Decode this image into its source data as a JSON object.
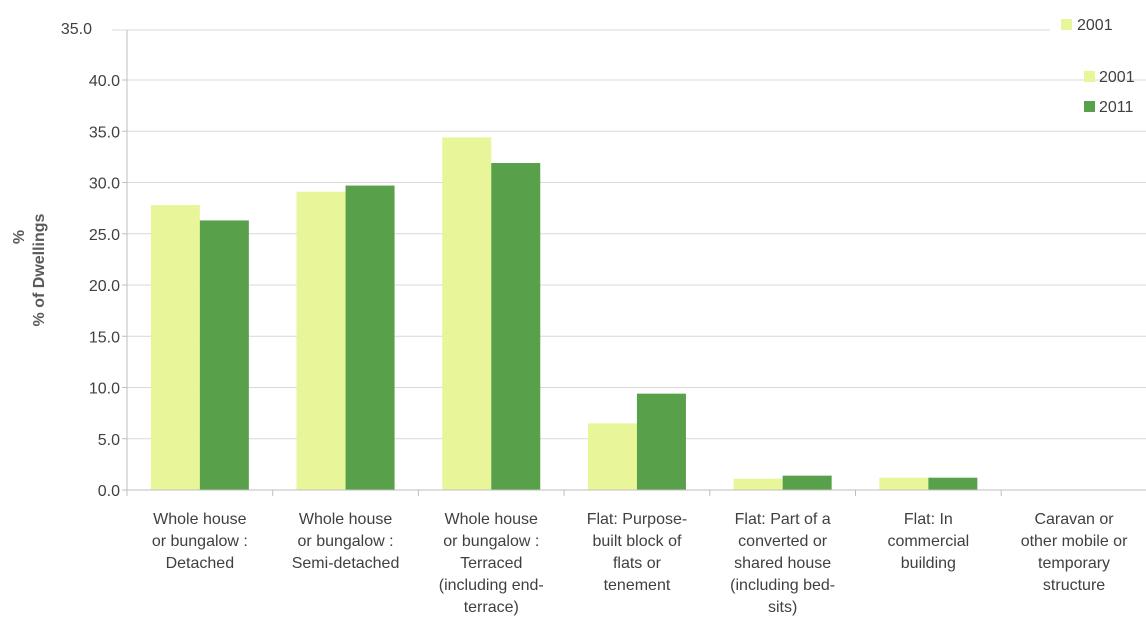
{
  "chart_data": {
    "type": "bar",
    "categories": [
      [
        "Whole house",
        "or bungalow :",
        "Detached"
      ],
      [
        "Whole house",
        "or bungalow :",
        "Semi-detached"
      ],
      [
        "Whole house",
        "or bungalow :",
        "Terraced",
        "(including end-",
        "terrace)"
      ],
      [
        "Flat: Purpose-",
        "built block of",
        "flats or",
        "tenement"
      ],
      [
        "Flat: Part of a",
        "converted or",
        "shared house",
        "(including bed-",
        "sits)"
      ],
      [
        "Flat: In",
        "commercial",
        "building"
      ],
      [
        "Caravan or",
        "other mobile or",
        "temporary",
        "structure"
      ]
    ],
    "series": [
      {
        "name": "2001",
        "values": [
          27.8,
          29.1,
          34.4,
          6.5,
          1.1,
          1.2,
          0.0
        ]
      },
      {
        "name": "2011",
        "values": [
          26.3,
          29.7,
          31.9,
          9.4,
          1.4,
          1.2,
          0.0
        ]
      }
    ],
    "ylabel_line1": "%",
    "ylabel": "% of Dwellings",
    "ylim": [
      0,
      40
    ],
    "yticks": [
      "0.0",
      "5.0",
      "10.0",
      "15.0",
      "20.0",
      "25.0",
      "30.0",
      "35.0",
      "40.0"
    ],
    "top_tick": "35.0",
    "top_legend": "2001",
    "colors": {
      "2001": "#e8f598",
      "2011": "#59a04a"
    },
    "grid": true,
    "legend_position": "right"
  }
}
